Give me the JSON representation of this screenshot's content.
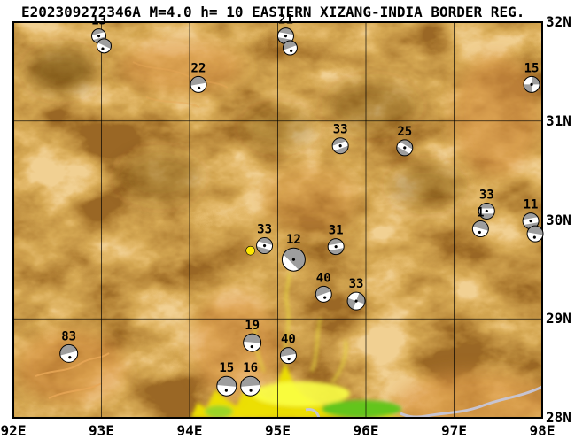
{
  "title": "E202309272346A M=4.0 h= 10 EASTERN XIZANG-INDIA BORDER REG.",
  "map": {
    "lon_min": 92,
    "lon_max": 98,
    "lat_min": 28,
    "lat_max": 32,
    "lon_ticks": [
      "92E",
      "93E",
      "94E",
      "95E",
      "96E",
      "97E",
      "98E"
    ],
    "lat_ticks": [
      "32N",
      "31N",
      "30N",
      "29N",
      "28N"
    ],
    "grid": "1 degree"
  },
  "colors": {
    "terrain_base": "#a9631c",
    "terrain_light": "#dd9849",
    "terrain_dark": "#5a3708",
    "lowland_yellow": "#ece000",
    "lowland_green": "#63c51e",
    "river": "#c6c6d8",
    "ball_gray": "#9e9e9e",
    "epicenter": "#ffe800",
    "grid_line": "#000000"
  },
  "epicenter": {
    "lon": 94.69,
    "lat": 29.69,
    "r": 5,
    "color": "#ffe800"
  },
  "mechanisms": [
    {
      "label": "13",
      "lon": 92.97,
      "lat": 31.86,
      "r": 8,
      "style": "caps",
      "rot": -15
    },
    {
      "label": "",
      "lon": 93.03,
      "lat": 31.76,
      "r": 8,
      "style": "top",
      "rot": 25
    },
    {
      "label": "21",
      "lon": 95.09,
      "lat": 31.86,
      "r": 9,
      "style": "caps",
      "rot": 10
    },
    {
      "label": "",
      "lon": 95.14,
      "lat": 31.74,
      "r": 8,
      "style": "top",
      "rot": -20
    },
    {
      "label": "22",
      "lon": 94.1,
      "lat": 31.37,
      "r": 9,
      "style": "top",
      "rot": -10
    },
    {
      "label": "15",
      "lon": 97.88,
      "lat": 31.37,
      "r": 9,
      "style": "quad",
      "rot": 0
    },
    {
      "label": "33",
      "lon": 95.71,
      "lat": 30.75,
      "r": 9,
      "style": "caps",
      "rot": -20
    },
    {
      "label": "25",
      "lon": 96.44,
      "lat": 30.73,
      "r": 9,
      "style": "caps",
      "rot": 30
    },
    {
      "label": "33",
      "lon": 97.37,
      "lat": 30.09,
      "r": 9,
      "style": "caps",
      "rot": 0
    },
    {
      "label": "1",
      "lon": 97.3,
      "lat": 29.91,
      "r": 9,
      "style": "top",
      "rot": 15
    },
    {
      "label": "11",
      "lon": 97.87,
      "lat": 29.99,
      "r": 9,
      "style": "caps",
      "rot": -10
    },
    {
      "label": "",
      "lon": 97.92,
      "lat": 29.86,
      "r": 9,
      "style": "top",
      "rot": 10
    },
    {
      "label": "33",
      "lon": 94.85,
      "lat": 29.74,
      "r": 9,
      "style": "caps",
      "rot": 15
    },
    {
      "label": "12",
      "lon": 95.18,
      "lat": 29.6,
      "r": 13,
      "style": "big",
      "rot": 225
    },
    {
      "label": "31",
      "lon": 95.66,
      "lat": 29.73,
      "r": 9,
      "style": "caps",
      "rot": -10
    },
    {
      "label": "40",
      "lon": 95.52,
      "lat": 29.25,
      "r": 9,
      "style": "top",
      "rot": -20
    },
    {
      "label": "33",
      "lon": 95.89,
      "lat": 29.18,
      "r": 10,
      "style": "quad",
      "rot": 20
    },
    {
      "label": "19",
      "lon": 94.71,
      "lat": 28.76,
      "r": 10,
      "style": "top",
      "rot": 5
    },
    {
      "label": "40",
      "lon": 95.12,
      "lat": 28.63,
      "r": 9,
      "style": "top",
      "rot": -10
    },
    {
      "label": "83",
      "lon": 92.63,
      "lat": 28.65,
      "r": 10,
      "style": "top",
      "rot": -15
    },
    {
      "label": "15",
      "lon": 94.42,
      "lat": 28.32,
      "r": 11,
      "style": "top",
      "rot": 5
    },
    {
      "label": "16",
      "lon": 94.69,
      "lat": 28.32,
      "r": 11,
      "style": "top",
      "rot": -5
    }
  ]
}
